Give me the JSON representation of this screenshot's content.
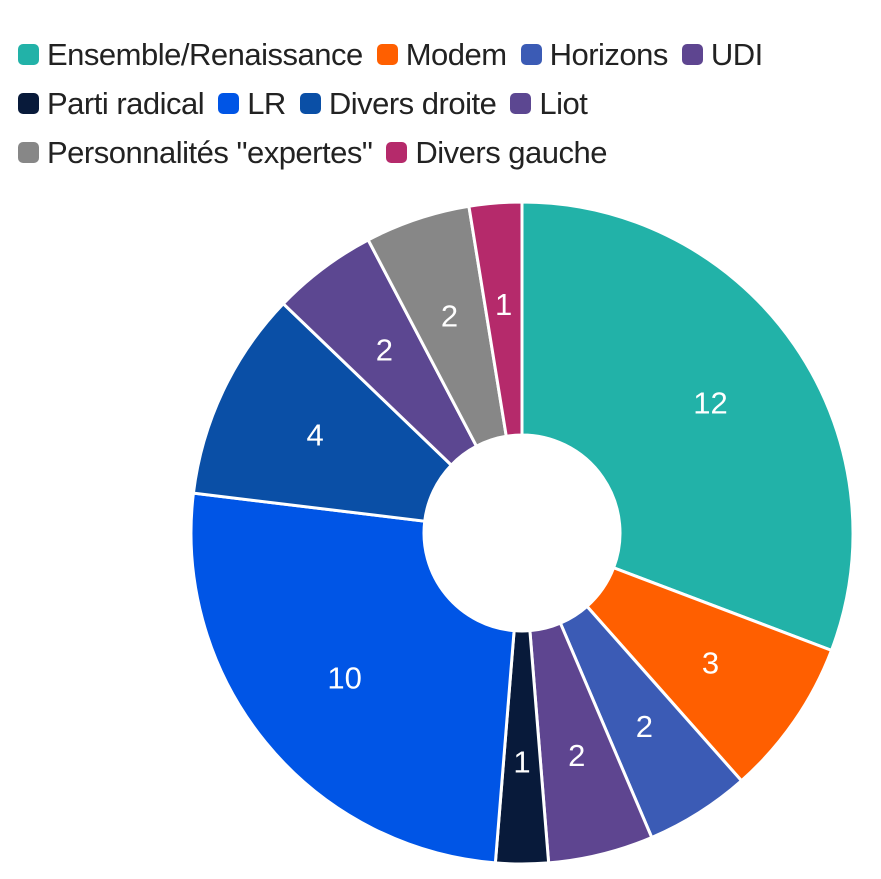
{
  "chart_data": {
    "type": "pie",
    "title": "",
    "legend_position": "top",
    "donut": true,
    "slices": [
      {
        "label": "Ensemble/Renaissance",
        "value": 12,
        "color": "#22b2a8"
      },
      {
        "label": "Modem",
        "value": 3,
        "color": "#ff5f00"
      },
      {
        "label": "Horizons",
        "value": 2,
        "color": "#3b5bb5"
      },
      {
        "label": "UDI",
        "value": 2,
        "color": "#5e4590"
      },
      {
        "label": "Parti radical",
        "value": 1,
        "color": "#081a3a"
      },
      {
        "label": "LR",
        "value": 10,
        "color": "#0055e6"
      },
      {
        "label": "Divers droite",
        "value": 4,
        "color": "#0a4fa6"
      },
      {
        "label": "Liot",
        "value": 2,
        "color": "#5c4791"
      },
      {
        "label": "Personnalités \"expertes\"",
        "value": 2,
        "color": "#878787"
      },
      {
        "label": "Divers gauche",
        "value": 1,
        "color": "#b52a6b"
      }
    ]
  }
}
